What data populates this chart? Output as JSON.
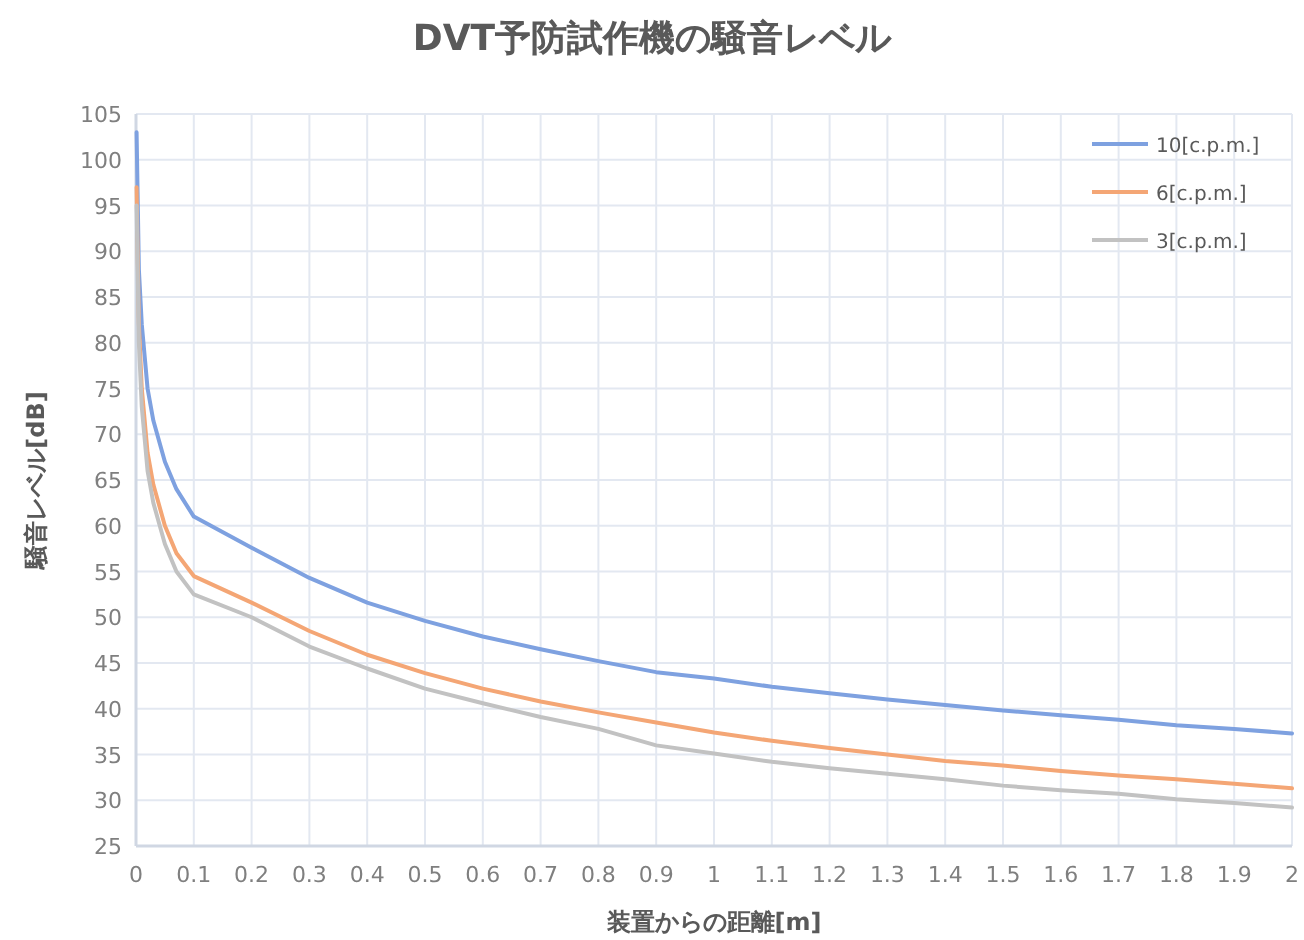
{
  "chart_data": {
    "type": "line",
    "title": "DVT予防試作機の騒音レベル",
    "xlabel": "装置からの距離[m]",
    "ylabel": "騒音レベル[dB]",
    "x": [
      0.001,
      0.005,
      0.01,
      0.02,
      0.03,
      0.05,
      0.07,
      0.1,
      0.2,
      0.3,
      0.4,
      0.5,
      0.6,
      0.7,
      0.8,
      0.9,
      1.0,
      1.1,
      1.2,
      1.3,
      1.4,
      1.5,
      1.6,
      1.7,
      1.8,
      1.9,
      2.0
    ],
    "series": [
      {
        "name": "10[c.p.m.]",
        "color": "#7ea1e0",
        "values": [
          103,
          88,
          82,
          75,
          71.5,
          67,
          64,
          61,
          57.6,
          54.3,
          51.6,
          49.6,
          47.9,
          46.5,
          45.2,
          44,
          43.3,
          42.4,
          41.7,
          41,
          40.4,
          39.8,
          39.3,
          38.8,
          38.2,
          37.8,
          37.3
        ]
      },
      {
        "name": "6[c.p.m.]",
        "color": "#f4a675",
        "values": [
          97,
          82,
          75,
          68,
          64.5,
          60,
          57,
          54.5,
          51.6,
          48.5,
          45.9,
          43.9,
          42.2,
          40.8,
          39.6,
          38.5,
          37.4,
          36.5,
          35.7,
          35,
          34.3,
          33.8,
          33.2,
          32.7,
          32.3,
          31.8,
          31.3
        ]
      },
      {
        "name": "3[c.p.m.]",
        "color": "#c2c2c2",
        "values": [
          95,
          80,
          73,
          66,
          62.5,
          58,
          55,
          52.5,
          50,
          46.8,
          44.4,
          42.2,
          40.6,
          39.1,
          37.8,
          36,
          35.1,
          34.2,
          33.5,
          32.9,
          32.3,
          31.6,
          31.1,
          30.7,
          30.1,
          29.7,
          29.2
        ]
      }
    ],
    "xlim": [
      0,
      2
    ],
    "ylim": [
      25,
      105
    ],
    "xticks": [
      0,
      0.1,
      0.2,
      0.3,
      0.4,
      0.5,
      0.6,
      0.7,
      0.8,
      0.9,
      1,
      1.1,
      1.2,
      1.3,
      1.4,
      1.5,
      1.6,
      1.7,
      1.8,
      1.9,
      2
    ],
    "yticks": [
      25,
      30,
      35,
      40,
      45,
      50,
      55,
      60,
      65,
      70,
      75,
      80,
      85,
      90,
      95,
      100,
      105
    ],
    "grid": true,
    "legend": "top right"
  }
}
